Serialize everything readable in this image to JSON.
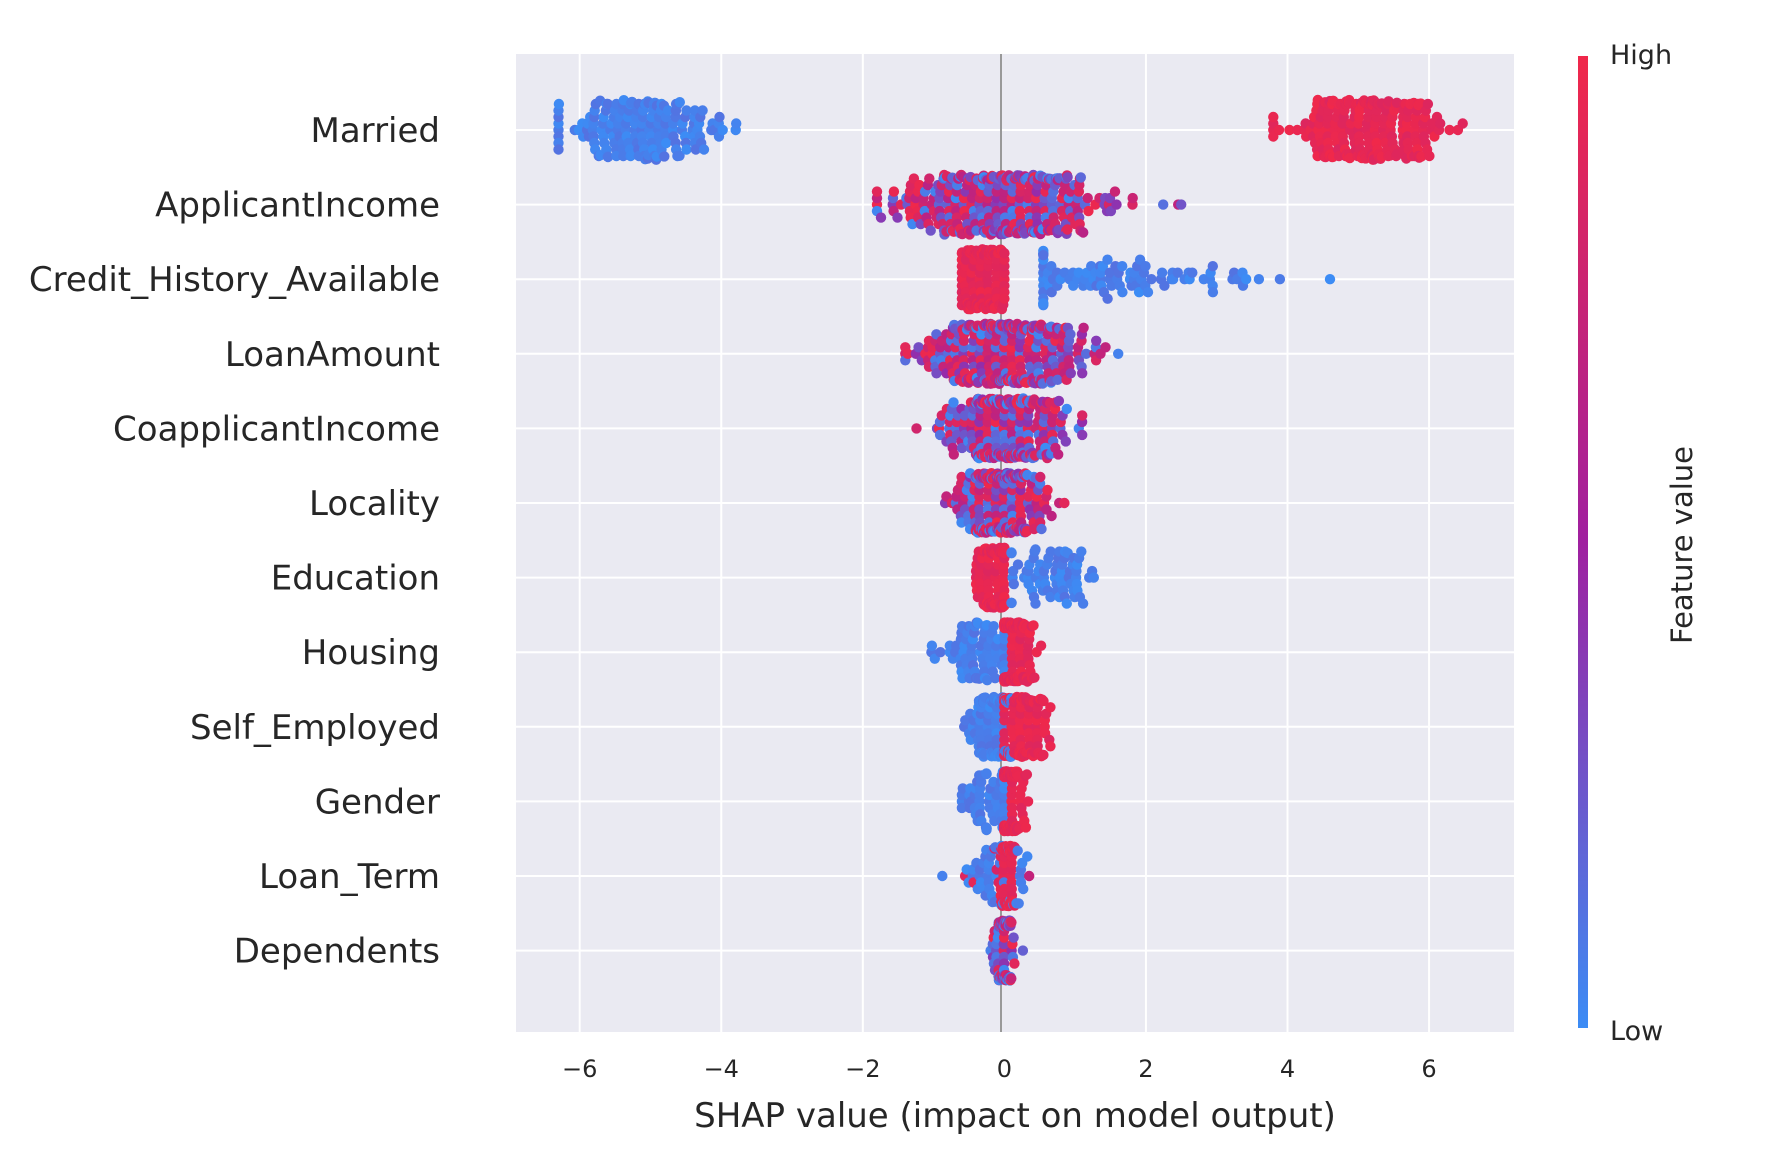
{
  "chart_data": {
    "type": "scatter",
    "subtype": "beeswarm",
    "title": "",
    "xlabel": "SHAP value (impact on model output)",
    "ylabel": "",
    "xlim": [
      -6.9,
      7.2
    ],
    "xticks": [
      -6,
      -4,
      -2,
      0,
      2,
      4,
      6
    ],
    "xtick_labels": [
      "−6",
      "−4",
      "−2",
      "0",
      "2",
      "4",
      "6"
    ],
    "grid": true,
    "colorbar": {
      "title": "Feature value",
      "high_label": "High",
      "low_label": "Low",
      "high_color": "#f0284a",
      "mid_color": "#a020a0",
      "low_color": "#3c8cf5"
    },
    "features": [
      {
        "name": "Married",
        "groups": [
          {
            "range": [
              -6.3,
              -3.7
            ],
            "center": -5.1,
            "spread": 0.55,
            "count": 170,
            "color_bias": 0.0
          },
          {
            "range": [
              3.8,
              6.5
            ],
            "center": 5.2,
            "spread": 0.55,
            "count": 230,
            "color_bias": 1.0
          }
        ]
      },
      {
        "name": "ApplicantIncome",
        "groups": [
          {
            "range": [
              -1.8,
              3.0
            ],
            "center": 0.0,
            "spread": 0.85,
            "count": 340,
            "color_bias": 0.5
          }
        ]
      },
      {
        "name": "Credit_History_Available",
        "groups": [
          {
            "range": [
              -0.6,
              0.0
            ],
            "center": -0.3,
            "spread": 0.18,
            "count": 150,
            "color_bias": 1.0
          },
          {
            "range": [
              0.55,
              4.6
            ],
            "center": 1.5,
            "spread": 1.1,
            "count": 95,
            "color_bias": 0.0
          }
        ]
      },
      {
        "name": "LoanAmount",
        "groups": [
          {
            "range": [
              -1.4,
              1.9
            ],
            "center": 0.0,
            "spread": 0.6,
            "count": 340,
            "color_bias": 0.55
          }
        ]
      },
      {
        "name": "CoapplicantIncome",
        "groups": [
          {
            "range": [
              -1.5,
              1.1
            ],
            "center": 0.0,
            "spread": 0.45,
            "count": 280,
            "color_bias": 0.5
          }
        ]
      },
      {
        "name": "Locality",
        "groups": [
          {
            "range": [
              -1.0,
              1.0
            ],
            "center": -0.05,
            "spread": 0.35,
            "count": 250,
            "color_bias": 0.55
          }
        ]
      },
      {
        "name": "Education",
        "groups": [
          {
            "range": [
              -0.4,
              0.0
            ],
            "center": -0.15,
            "spread": 0.12,
            "count": 120,
            "color_bias": 1.0
          },
          {
            "range": [
              0.1,
              1.6
            ],
            "center": 0.6,
            "spread": 0.4,
            "count": 70,
            "color_bias": 0.0
          }
        ]
      },
      {
        "name": "Housing",
        "groups": [
          {
            "range": [
              -1.1,
              0.0
            ],
            "center": -0.3,
            "spread": 0.3,
            "count": 80,
            "color_bias": 0.0
          },
          {
            "range": [
              0.0,
              0.6
            ],
            "center": 0.15,
            "spread": 0.13,
            "count": 140,
            "color_bias": 1.0
          }
        ]
      },
      {
        "name": "Self_Employed",
        "groups": [
          {
            "range": [
              -0.6,
              0.1
            ],
            "center": -0.15,
            "spread": 0.18,
            "count": 110,
            "color_bias": 0.0
          },
          {
            "range": [
              0.0,
              0.65
            ],
            "center": 0.2,
            "spread": 0.18,
            "count": 130,
            "color_bias": 1.0
          }
        ]
      },
      {
        "name": "Gender",
        "groups": [
          {
            "range": [
              -0.6,
              0.0
            ],
            "center": -0.2,
            "spread": 0.2,
            "count": 55,
            "color_bias": 0.0
          },
          {
            "range": [
              0.0,
              0.4
            ],
            "center": 0.08,
            "spread": 0.1,
            "count": 150,
            "color_bias": 1.0
          }
        ]
      },
      {
        "name": "Loan_Term",
        "groups": [
          {
            "range": [
              -0.9,
              0.35
            ],
            "center": -0.1,
            "spread": 0.25,
            "count": 60,
            "color_bias": 0.15
          },
          {
            "range": [
              -0.05,
              0.15
            ],
            "center": 0.05,
            "spread": 0.05,
            "count": 110,
            "color_bias": 1.0
          }
        ]
      },
      {
        "name": "Dependents",
        "groups": [
          {
            "range": [
              -0.3,
              0.3
            ],
            "center": 0.0,
            "spread": 0.07,
            "count": 130,
            "color_bias": 0.3
          }
        ]
      }
    ]
  }
}
